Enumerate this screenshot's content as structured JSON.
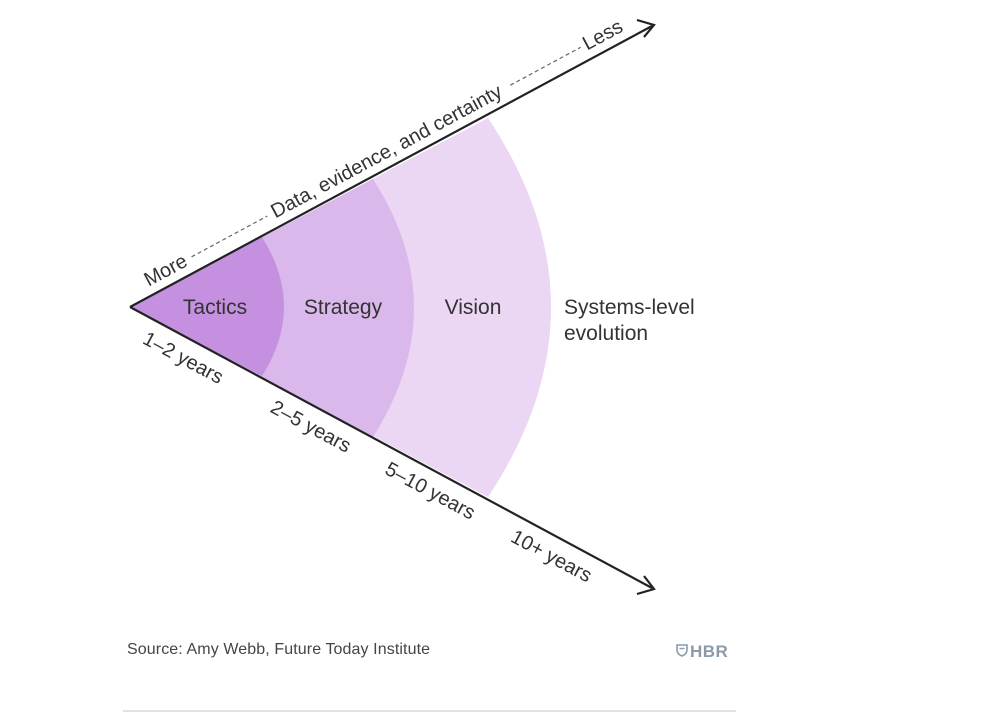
{
  "diagram": {
    "zones": [
      {
        "label": "Tactics",
        "color": "#c590df"
      },
      {
        "label": "Strategy",
        "color": "#dab8ec"
      },
      {
        "label": "Vision",
        "color": "#ebd6f4"
      },
      {
        "label_line1": "Systems-level",
        "label_line2": "evolution",
        "color": "#ffffff"
      }
    ],
    "upper_axis": {
      "start_label": "More",
      "middle_label": "Data, evidence, and certainty",
      "end_label": "Less"
    },
    "lower_axis": {
      "labels": [
        "1–2 years",
        "2–5 years",
        "5–10 years",
        "10+ years"
      ]
    },
    "axis_color": "#222222"
  },
  "footer": {
    "source": "Source: Amy Webb, Future Today Institute",
    "logo": "HBR",
    "logo_icon": "shield-icon"
  }
}
